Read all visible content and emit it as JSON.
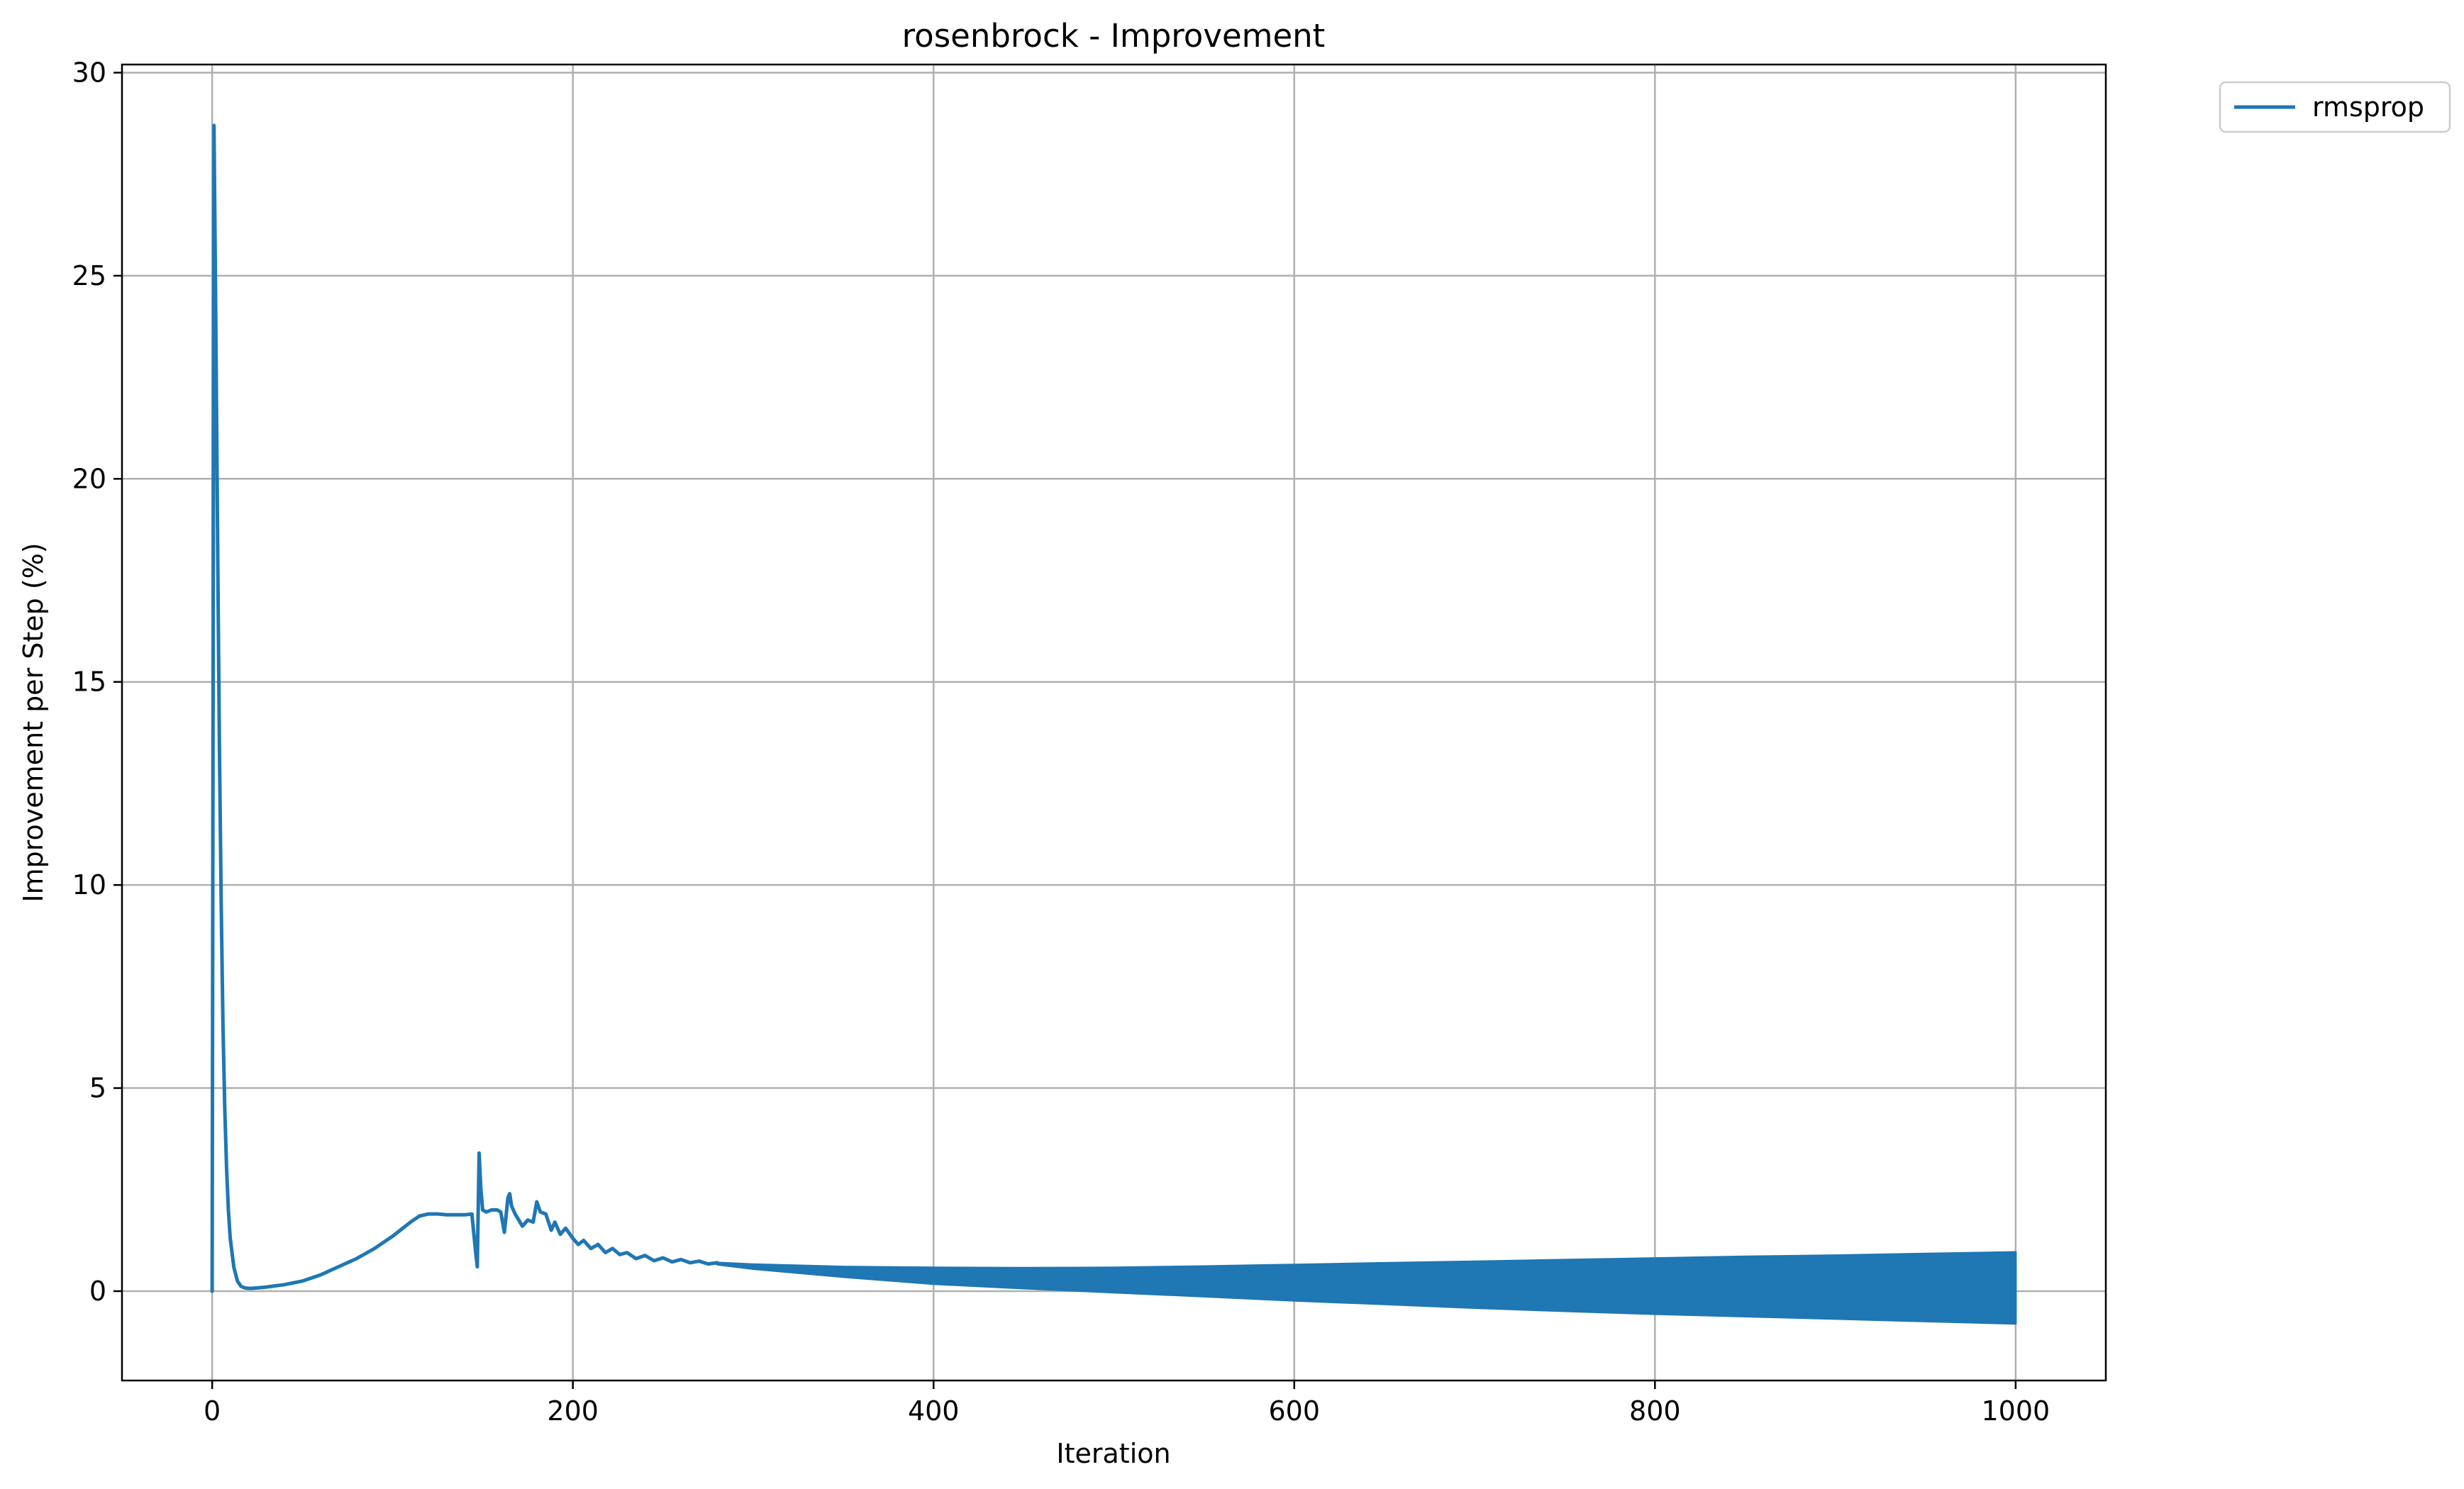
{
  "chart_data": {
    "type": "line",
    "title": "rosenbrock - Improvement",
    "xlabel": "Iteration",
    "ylabel": "Improvement per Step (%)",
    "xlim": [
      -50,
      1050
    ],
    "ylim": [
      -2.2,
      30.2
    ],
    "xticks": [
      0,
      200,
      400,
      600,
      800,
      1000
    ],
    "yticks": [
      0,
      5,
      10,
      15,
      20,
      25,
      30
    ],
    "grid": true,
    "legend_position": "outside-top-right",
    "series": [
      {
        "name": "rmsprop",
        "color": "#1f77b4",
        "x": [
          0,
          1,
          2,
          3,
          4,
          5,
          6,
          7,
          8,
          9,
          10,
          12,
          14,
          16,
          18,
          20,
          22,
          25,
          30,
          40,
          50,
          60,
          70,
          80,
          90,
          100,
          110,
          115,
          120,
          125,
          130,
          135,
          140,
          144,
          146,
          147,
          148,
          149,
          150,
          152,
          155,
          158,
          160,
          162,
          164,
          165,
          166,
          168,
          170,
          172,
          175,
          178,
          180,
          182,
          185,
          188,
          190,
          193,
          196,
          200,
          203,
          206,
          210,
          214,
          218,
          222,
          226,
          230,
          235,
          240,
          245,
          250,
          255,
          260,
          265,
          270,
          275,
          280
        ],
        "y": [
          0,
          28.7,
          24.0,
          18.5,
          13.5,
          9.5,
          6.5,
          4.5,
          3.0,
          2.0,
          1.3,
          0.6,
          0.25,
          0.12,
          0.08,
          0.07,
          0.07,
          0.08,
          0.1,
          0.16,
          0.25,
          0.4,
          0.6,
          0.8,
          1.05,
          1.35,
          1.7,
          1.85,
          1.9,
          1.9,
          1.88,
          1.88,
          1.88,
          1.9,
          1.0,
          0.6,
          3.4,
          2.5,
          2.0,
          1.95,
          2.0,
          2.0,
          1.95,
          1.45,
          2.3,
          2.4,
          2.1,
          1.9,
          1.75,
          1.6,
          1.75,
          1.7,
          2.2,
          1.95,
          1.9,
          1.5,
          1.7,
          1.4,
          1.55,
          1.3,
          1.15,
          1.25,
          1.05,
          1.15,
          0.95,
          1.05,
          0.9,
          0.95,
          0.8,
          0.88,
          0.75,
          0.82,
          0.72,
          0.78,
          0.7,
          0.74,
          0.67,
          0.7
        ]
      }
    ],
    "oscillation_band": {
      "x": [
        280,
        300,
        350,
        400,
        450,
        500,
        550,
        600,
        650,
        700,
        750,
        800,
        850,
        900,
        950,
        1000
      ],
      "upper": [
        0.7,
        0.66,
        0.6,
        0.58,
        0.57,
        0.58,
        0.61,
        0.65,
        0.69,
        0.73,
        0.77,
        0.81,
        0.85,
        0.88,
        0.92,
        0.96
      ],
      "lower": [
        0.66,
        0.55,
        0.35,
        0.18,
        0.07,
        -0.03,
        -0.13,
        -0.23,
        -0.32,
        -0.41,
        -0.49,
        -0.56,
        -0.62,
        -0.68,
        -0.74,
        -0.8
      ]
    }
  }
}
